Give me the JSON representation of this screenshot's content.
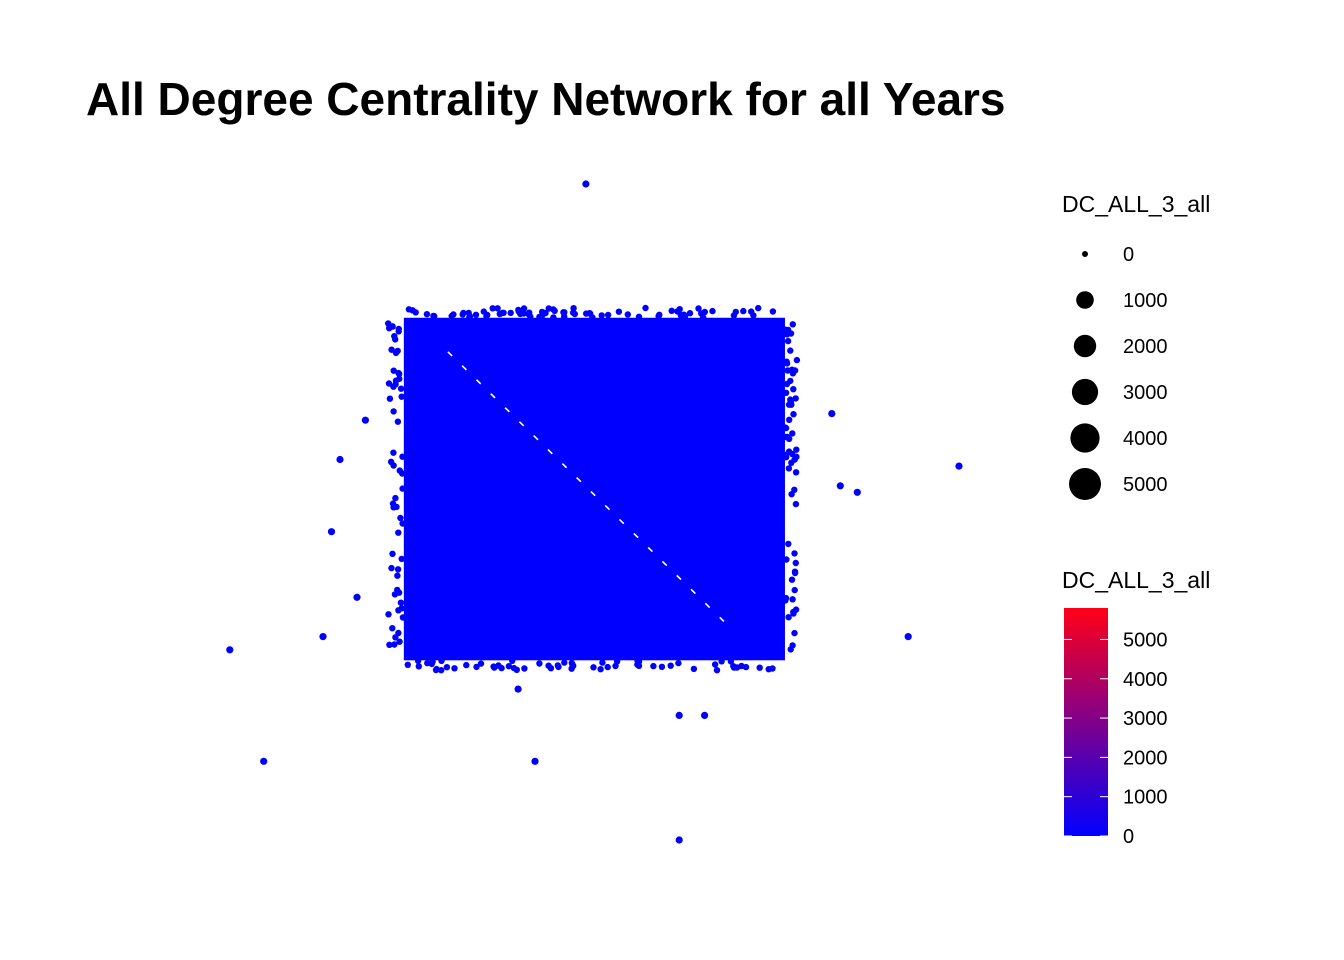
{
  "chart_data": {
    "type": "scatter",
    "title": "All Degree Centrality Network for all Years",
    "xlabel": "",
    "ylabel": "",
    "axes_visible": false,
    "grid": false,
    "point_color": "#0000ff",
    "cluster": {
      "shape": "dense rectangular block of nodes",
      "x_range": [
        0.33,
        0.77
      ],
      "y_range": [
        0.21,
        0.72
      ],
      "diagonal_gap": true
    },
    "outliers": [
      {
        "x": 0.54,
        "y": 0.0
      },
      {
        "x": 0.64,
        "y": 0.23
      },
      {
        "x": 0.83,
        "y": 0.35
      },
      {
        "x": 0.98,
        "y": 0.43
      },
      {
        "x": 0.84,
        "y": 0.46
      },
      {
        "x": 0.86,
        "y": 0.47
      },
      {
        "x": 0.25,
        "y": 0.42
      },
      {
        "x": 0.28,
        "y": 0.36
      },
      {
        "x": 0.24,
        "y": 0.53
      },
      {
        "x": 0.12,
        "y": 0.71
      },
      {
        "x": 0.23,
        "y": 0.69
      },
      {
        "x": 0.27,
        "y": 0.63
      },
      {
        "x": 0.16,
        "y": 0.88
      },
      {
        "x": 0.92,
        "y": 0.69
      },
      {
        "x": 0.46,
        "y": 0.77
      },
      {
        "x": 0.48,
        "y": 0.88
      },
      {
        "x": 0.65,
        "y": 0.81
      },
      {
        "x": 0.68,
        "y": 0.81
      },
      {
        "x": 0.65,
        "y": 1.0
      }
    ],
    "legend_size": {
      "title": "DC_ALL_3_all",
      "position": "right",
      "items": [
        "0",
        "1000",
        "2000",
        "3000",
        "4000",
        "5000"
      ],
      "values": [
        0,
        1000,
        2000,
        3000,
        4000,
        5000
      ]
    },
    "legend_color": {
      "title": "DC_ALL_3_all",
      "position": "right",
      "low_color": "#0000ff",
      "high_color": "#ff0016",
      "range": [
        0,
        5800
      ],
      "ticks": [
        "0",
        "1000",
        "2000",
        "3000",
        "4000",
        "5000"
      ],
      "tick_values": [
        0,
        1000,
        2000,
        3000,
        4000,
        5000
      ]
    }
  }
}
